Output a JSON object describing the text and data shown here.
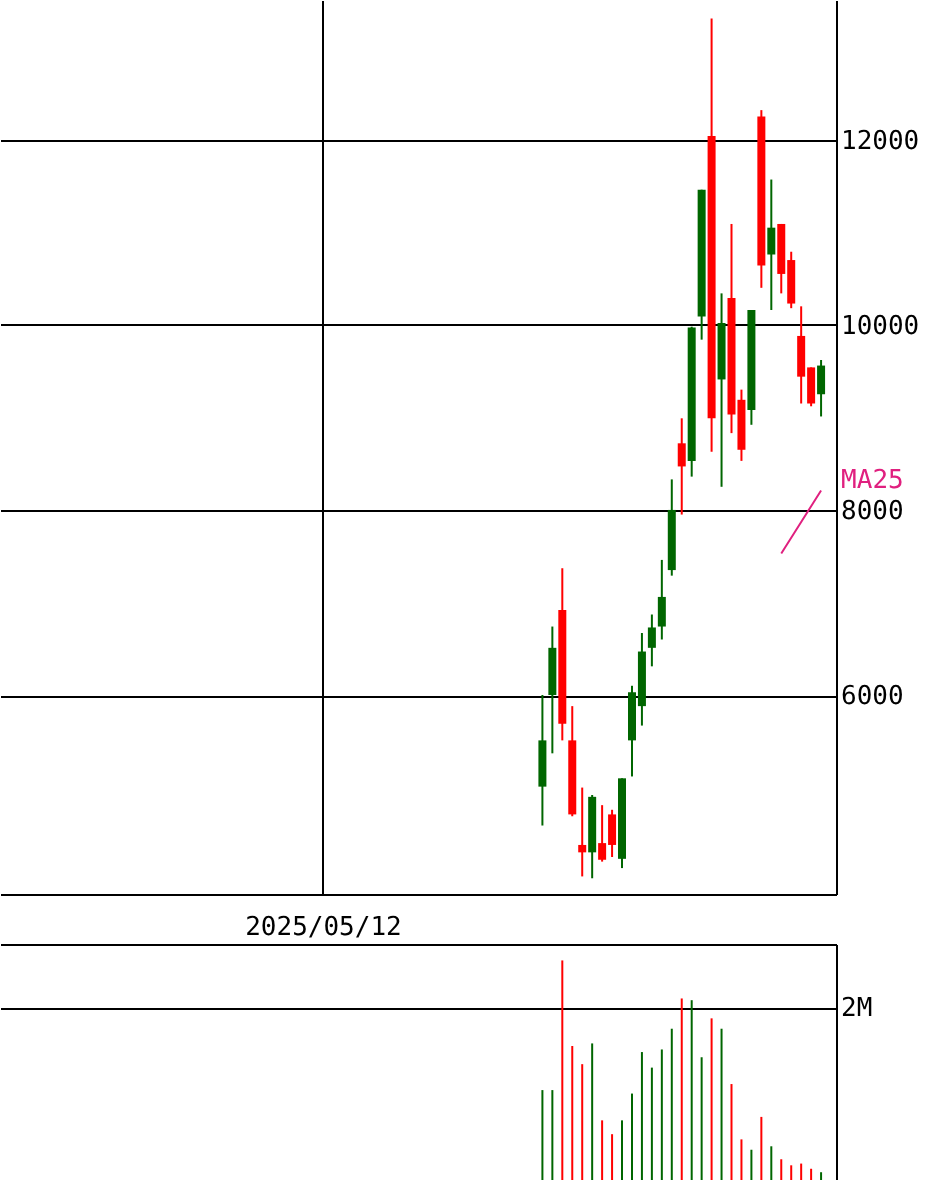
{
  "chart_data": [
    {
      "type": "candlestick",
      "grid": true,
      "ylim": [
        3850,
        13510
      ],
      "yticks": [
        6000,
        8000,
        10000,
        12000
      ],
      "categories": [
        null,
        null,
        null,
        null,
        null,
        null,
        null,
        null,
        null,
        null,
        null,
        null,
        null,
        null,
        null,
        null,
        null,
        null,
        null,
        null,
        null,
        null,
        null,
        null,
        null,
        null,
        null,
        null,
        null,
        null,
        null,
        null,
        "2025/05/12",
        null,
        null,
        null,
        null,
        null,
        null,
        null,
        null,
        null,
        null,
        null,
        null,
        null,
        null,
        null,
        null,
        null,
        null,
        null,
        null,
        null,
        null,
        null,
        null,
        null,
        null,
        null,
        null,
        null,
        null,
        null,
        null,
        null,
        null,
        null,
        null,
        null,
        null,
        null,
        null,
        null,
        null,
        null,
        null,
        null,
        null,
        null,
        null,
        null,
        null,
        null
      ],
      "ohlc": [
        null,
        null,
        null,
        null,
        null,
        null,
        null,
        null,
        null,
        null,
        null,
        null,
        null,
        null,
        null,
        null,
        null,
        null,
        null,
        null,
        null,
        null,
        null,
        null,
        null,
        null,
        null,
        null,
        null,
        null,
        null,
        null,
        null,
        null,
        null,
        null,
        null,
        null,
        null,
        null,
        null,
        null,
        null,
        null,
        null,
        null,
        null,
        null,
        null,
        null,
        null,
        null,
        null,
        null,
        [
          5010,
          6000,
          4590,
          5510
        ],
        [
          6000,
          6740,
          5370,
          6510
        ],
        [
          6920,
          7370,
          5510,
          5690
        ],
        [
          5510,
          5880,
          4690,
          4710
        ],
        [
          4380,
          5000,
          4040,
          4300
        ],
        [
          4300,
          4920,
          4020,
          4900
        ],
        [
          4400,
          4810,
          4200,
          4220
        ],
        [
          4710,
          4760,
          4250,
          4380
        ],
        [
          4230,
          5100,
          4130,
          5100
        ],
        [
          5510,
          6100,
          5120,
          6030
        ],
        [
          5880,
          6670,
          5670,
          6470
        ],
        [
          6510,
          6870,
          6310,
          6730
        ],
        [
          6740,
          7460,
          6600,
          7060
        ],
        [
          7350,
          8330,
          7290,
          8000
        ],
        [
          8720,
          8990,
          7950,
          8470
        ],
        [
          8530,
          9980,
          8360,
          9970
        ],
        [
          10090,
          11460,
          9840,
          11460
        ],
        [
          12040,
          13310,
          8630,
          8990
        ],
        [
          9410,
          10340,
          8250,
          10020
        ],
        [
          10290,
          11090,
          8830,
          9030
        ],
        [
          9190,
          9300,
          8530,
          8650
        ],
        [
          9080,
          10160,
          8920,
          10160
        ],
        [
          12250,
          12320,
          10400,
          10640
        ],
        [
          10760,
          11570,
          10160,
          11050
        ],
        [
          11090,
          11090,
          10340,
          10550
        ],
        [
          10700,
          10790,
          10180,
          10230
        ],
        [
          9880,
          10200,
          9150,
          9440
        ],
        [
          9540,
          9540,
          9120,
          9150
        ],
        [
          9250,
          9620,
          9010,
          9560
        ],
        null
      ],
      "colors": [
        null,
        null,
        null,
        null,
        null,
        null,
        null,
        null,
        null,
        null,
        null,
        null,
        null,
        null,
        null,
        null,
        null,
        null,
        null,
        null,
        null,
        null,
        null,
        null,
        null,
        null,
        null,
        null,
        null,
        null,
        null,
        null,
        null,
        null,
        null,
        null,
        null,
        null,
        null,
        null,
        null,
        null,
        null,
        null,
        null,
        null,
        null,
        null,
        null,
        null,
        null,
        null,
        null,
        null,
        "#006600",
        "#006600",
        "#ff0000",
        "#ff0000",
        "#ff0000",
        "#006600",
        "#ff0000",
        "#ff0000",
        "#006600",
        "#006600",
        "#006600",
        "#006600",
        "#006600",
        "#006600",
        "#ff0000",
        "#006600",
        "#006600",
        "#ff0000",
        "#006600",
        "#ff0000",
        "#ff0000",
        "#006600",
        "#ff0000",
        "#006600",
        "#ff0000",
        "#ff0000",
        "#ff0000",
        "#ff0000",
        "#006600",
        null
      ],
      "series": [
        {
          "name": "MA25",
          "type": "line",
          "color": "#e0207f",
          "values": [
            null,
            null,
            null,
            null,
            null,
            null,
            null,
            null,
            null,
            null,
            null,
            null,
            null,
            null,
            null,
            null,
            null,
            null,
            null,
            null,
            null,
            null,
            null,
            null,
            null,
            null,
            null,
            null,
            null,
            null,
            null,
            null,
            null,
            null,
            null,
            null,
            null,
            null,
            null,
            null,
            null,
            null,
            null,
            null,
            null,
            null,
            null,
            null,
            null,
            null,
            null,
            null,
            null,
            null,
            null,
            null,
            null,
            null,
            null,
            null,
            null,
            null,
            null,
            null,
            null,
            null,
            null,
            null,
            null,
            null,
            null,
            null,
            null,
            null,
            null,
            null,
            null,
            null,
            7530,
            7700,
            7870,
            8040,
            8210,
            null
          ]
        }
      ]
    },
    {
      "type": "bar",
      "grid": "y",
      "tick_labels": "y",
      "ylim": [
        0,
        2730000
      ],
      "yticks": [
        {
          "value": 2000000,
          "label": "2M"
        }
      ],
      "categories": [
        null,
        null,
        null,
        null,
        null,
        null,
        null,
        null,
        null,
        null,
        null,
        null,
        null,
        null,
        null,
        null,
        null,
        null,
        null,
        null,
        null,
        null,
        null,
        null,
        null,
        null,
        null,
        null,
        null,
        null,
        null,
        null,
        null,
        null,
        null,
        null,
        null,
        null,
        null,
        null,
        null,
        null,
        null,
        null,
        null,
        null,
        null,
        null,
        null,
        null,
        null,
        null,
        null,
        null,
        null,
        null,
        null,
        null,
        null,
        null,
        null,
        null,
        null,
        null,
        null,
        null,
        null,
        null,
        null,
        null,
        null,
        null,
        null,
        null,
        null,
        null,
        null,
        null,
        null,
        null,
        null,
        null,
        null,
        null
      ],
      "values": [
        null,
        null,
        null,
        null,
        null,
        null,
        null,
        null,
        null,
        null,
        null,
        null,
        null,
        null,
        null,
        null,
        null,
        null,
        null,
        null,
        null,
        null,
        null,
        null,
        null,
        null,
        null,
        null,
        null,
        null,
        null,
        null,
        null,
        null,
        null,
        null,
        null,
        null,
        null,
        null,
        null,
        null,
        null,
        null,
        null,
        null,
        null,
        null,
        null,
        null,
        null,
        null,
        null,
        null,
        1040000,
        1040000,
        2540000,
        1550000,
        1340000,
        1580000,
        690000,
        530000,
        690000,
        1000000,
        1480000,
        1300000,
        1510000,
        1750000,
        2100000,
        2080000,
        1420000,
        1870000,
        1750000,
        1110000,
        470000,
        350000,
        730000,
        390000,
        240000,
        170000,
        190000,
        130000,
        90000,
        null
      ],
      "colors": [
        null,
        null,
        null,
        null,
        null,
        null,
        null,
        null,
        null,
        null,
        null,
        null,
        null,
        null,
        null,
        null,
        null,
        null,
        null,
        null,
        null,
        null,
        null,
        null,
        null,
        null,
        null,
        null,
        null,
        null,
        null,
        null,
        null,
        null,
        null,
        null,
        null,
        null,
        null,
        null,
        null,
        null,
        null,
        null,
        null,
        null,
        null,
        null,
        null,
        null,
        null,
        null,
        null,
        null,
        "#006600",
        "#006600",
        "#ff0000",
        "#ff0000",
        "#ff0000",
        "#006600",
        "#ff0000",
        "#ff0000",
        "#006600",
        "#006600",
        "#006600",
        "#006600",
        "#006600",
        "#006600",
        "#ff0000",
        "#006600",
        "#006600",
        "#ff0000",
        "#006600",
        "#ff0000",
        "#ff0000",
        "#006600",
        "#ff0000",
        "#006600",
        "#ff0000",
        "#ff0000",
        "#ff0000",
        "#ff0000",
        "#006600",
        null
      ]
    }
  ]
}
